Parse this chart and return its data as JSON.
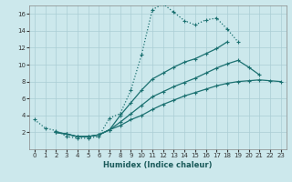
{
  "xlabel": "Humidex (Indice chaleur)",
  "background_color": "#cce8ec",
  "grid_color": "#aacdd4",
  "line_color": "#1a7070",
  "xlim": [
    -0.5,
    23.5
  ],
  "ylim": [
    0,
    17
  ],
  "xticks": [
    0,
    1,
    2,
    3,
    4,
    5,
    6,
    7,
    8,
    9,
    10,
    11,
    12,
    13,
    14,
    15,
    16,
    17,
    18,
    19,
    20,
    21,
    22,
    23
  ],
  "yticks": [
    2,
    4,
    6,
    8,
    10,
    12,
    14,
    16
  ],
  "s1_x": [
    0,
    1,
    2,
    3,
    4,
    5,
    6,
    7,
    8,
    9,
    10,
    11,
    12,
    13,
    14,
    15,
    16,
    17,
    18,
    19
  ],
  "s1_y": [
    3.5,
    2.5,
    2.2,
    1.5,
    1.3,
    1.3,
    1.5,
    3.7,
    4.2,
    7.0,
    11.2,
    16.5,
    17.2,
    16.2,
    15.2,
    14.7,
    15.3,
    15.5,
    14.2,
    12.7
  ],
  "s2_x": [
    2,
    3,
    4,
    5,
    6,
    7,
    8,
    9,
    10,
    11,
    12,
    13,
    14,
    15,
    16,
    17,
    18,
    19,
    20,
    21
  ],
  "s2_y": [
    2.0,
    1.8,
    1.5,
    1.5,
    1.7,
    2.3,
    3.2,
    4.2,
    5.2,
    6.2,
    6.8,
    7.4,
    7.9,
    8.4,
    9.0,
    9.6,
    10.1,
    10.5,
    9.7,
    8.8
  ],
  "s3_x": [
    2,
    3,
    4,
    5,
    6,
    7,
    8,
    9,
    10,
    11,
    12,
    13,
    14,
    15,
    16,
    17,
    18
  ],
  "s3_y": [
    2.0,
    1.8,
    1.5,
    1.5,
    1.7,
    2.3,
    4.0,
    5.5,
    7.0,
    8.3,
    9.0,
    9.7,
    10.3,
    10.7,
    11.3,
    11.9,
    12.7
  ],
  "s4_x": [
    2,
    3,
    4,
    5,
    6,
    7,
    8,
    9,
    10,
    11,
    12,
    13,
    14,
    15,
    16,
    17,
    18,
    19,
    20,
    21,
    22,
    23
  ],
  "s4_y": [
    2.0,
    1.8,
    1.5,
    1.5,
    1.7,
    2.3,
    2.8,
    3.5,
    4.0,
    4.7,
    5.3,
    5.8,
    6.3,
    6.7,
    7.1,
    7.5,
    7.8,
    8.0,
    8.1,
    8.2,
    8.1,
    8.0
  ]
}
